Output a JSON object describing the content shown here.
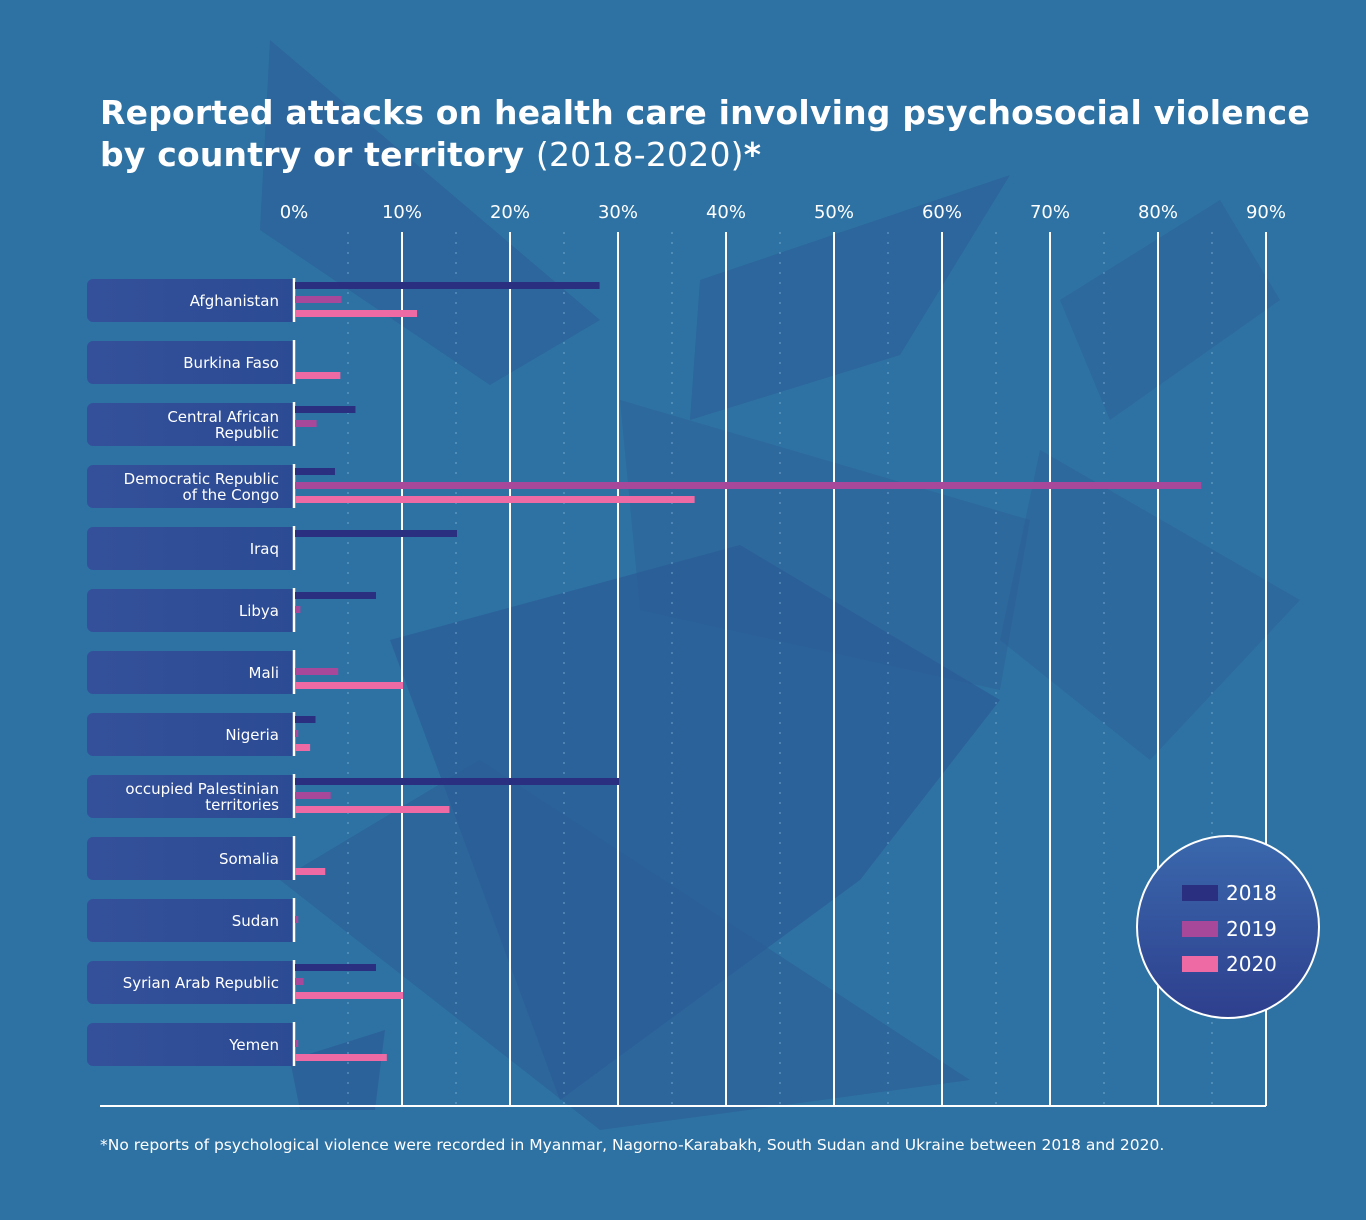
{
  "title_bold": "Reported attacks on health care involving psychosocial violence by country or territory",
  "title_light": "(2018-2020)",
  "title_mark": "*",
  "footnote": "*No reports of psychological violence were recorded in Myanmar, Nagorno-Karabakh, South Sudan and Ukraine between 2018 and 2020.",
  "chart_data": {
    "type": "bar",
    "orientation": "horizontal",
    "xlim": [
      0,
      90
    ],
    "x_ticks": [
      "0%",
      "10%",
      "20%",
      "30%",
      "40%",
      "50%",
      "60%",
      "70%",
      "80%",
      "90%"
    ],
    "grid": true,
    "legend_placement": "bottom-right",
    "categories": [
      "Afghanistan",
      "Burkina Faso",
      "Central African\nRepublic",
      "Democratic Republic\nof the Congo",
      "Iraq",
      "Libya",
      "Mali",
      "Nigeria",
      "occupied Palestinian\nterritories",
      "Somalia",
      "Sudan",
      "Syrian Arab Republic",
      "Yemen"
    ],
    "series": [
      {
        "name": "2018",
        "color": "#2a2f80",
        "values": [
          28.2,
          0,
          5.6,
          3.7,
          15.0,
          7.5,
          0,
          1.9,
          30.0,
          0,
          0,
          7.5,
          0
        ]
      },
      {
        "name": "2019",
        "color": "#a8489a",
        "values": [
          4.3,
          0,
          2.0,
          83.9,
          0,
          0.5,
          4.0,
          0.3,
          3.3,
          0,
          0.3,
          0.8,
          0.3
        ]
      },
      {
        "name": "2020",
        "color": "#ee6aa5",
        "values": [
          11.3,
          4.2,
          0,
          37.0,
          0,
          0,
          10.0,
          1.4,
          14.3,
          2.8,
          0,
          10.0,
          8.5
        ]
      }
    ]
  }
}
